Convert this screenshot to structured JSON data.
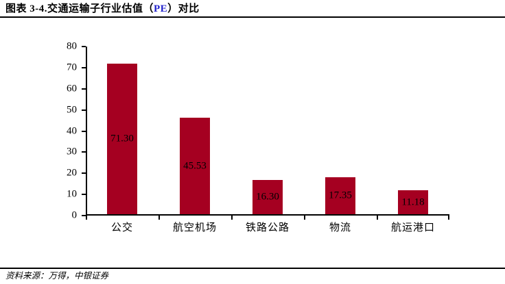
{
  "header": {
    "title_prefix": "图表 3-4.交通运输子行业估值（",
    "title_highlight": "PE",
    "title_suffix": "）对比"
  },
  "footer": {
    "source": "资料来源：万得，中银证券"
  },
  "colors": {
    "bar_red": "#A50021",
    "title_highlight_blue": "#2222CC",
    "axis_black": "#000000"
  },
  "chart_data": {
    "type": "bar",
    "title": "交通运输子行业估值（PE）对比",
    "categories": [
      "公交",
      "航空机场",
      "铁路公路",
      "物流",
      "航运港口"
    ],
    "values": [
      71.3,
      45.53,
      16.3,
      17.35,
      11.18
    ],
    "value_labels": [
      "71.30",
      "45.53",
      "16.30",
      "17.35",
      "11.18"
    ],
    "xlabel": "",
    "ylabel": "",
    "ylim": [
      0,
      80
    ],
    "yticks": [
      0,
      10,
      20,
      30,
      40,
      50,
      60,
      70,
      80
    ],
    "grid": false,
    "legend": false,
    "bar_color": "#A50021",
    "value_label_color": "#000000",
    "value_label_position": "inside-center"
  }
}
